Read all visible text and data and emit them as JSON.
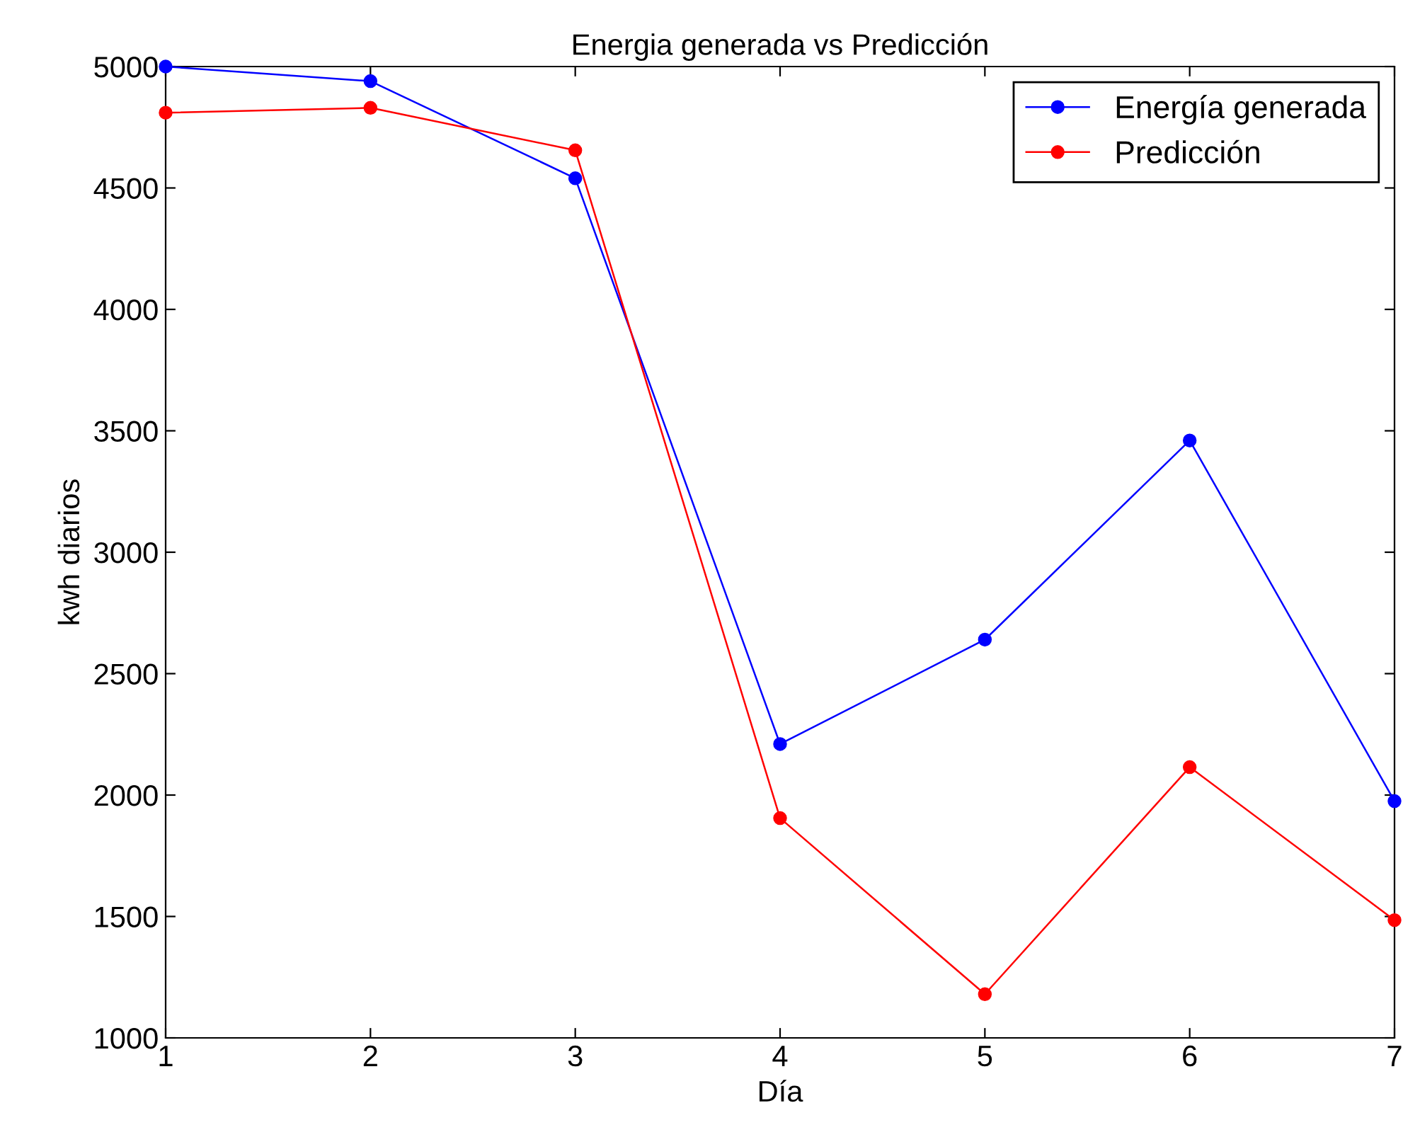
{
  "chart_data": {
    "type": "line",
    "title": "Energia generada vs Predicción",
    "xlabel": "Día",
    "ylabel": "kwh diarios",
    "x": [
      1,
      2,
      3,
      4,
      5,
      6,
      7
    ],
    "series": [
      {
        "name": "Energía generada",
        "color": "#0000ff",
        "values": [
          5000,
          4940,
          4540,
          2210,
          2640,
          3460,
          1975
        ]
      },
      {
        "name": "Predicción",
        "color": "#ff0000",
        "values": [
          4810,
          4830,
          4655,
          1905,
          1180,
          2115,
          1485
        ]
      }
    ],
    "xlim": [
      1,
      7
    ],
    "xticks": [
      1,
      2,
      3,
      4,
      5,
      6,
      7
    ],
    "ylim": [
      1000,
      5000
    ],
    "yticks": [
      1000,
      1500,
      2000,
      2500,
      3000,
      3500,
      4000,
      4500,
      5000
    ],
    "grid": false,
    "legend": "top right",
    "marker": "circle",
    "line_style": "solid"
  }
}
